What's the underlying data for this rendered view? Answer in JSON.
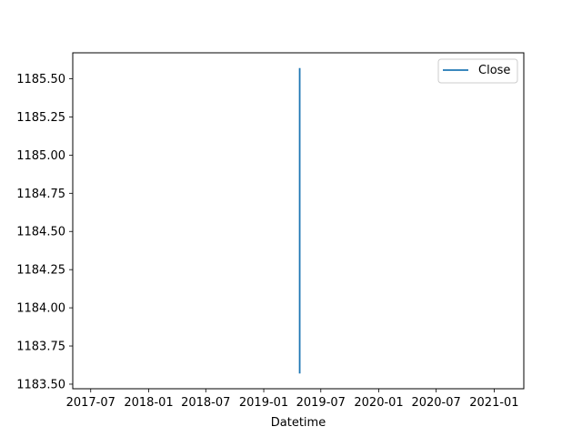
{
  "chart_data": {
    "type": "line",
    "title": "",
    "xlabel": "Datetime",
    "ylabel": "",
    "x_type": "date",
    "x_tick_labels": [
      "2017-07",
      "2018-01",
      "2018-07",
      "2019-01",
      "2019-07",
      "2020-01",
      "2020-07",
      "2021-01"
    ],
    "y_tick_labels": [
      "1183.50",
      "1183.75",
      "1184.00",
      "1184.25",
      "1184.50",
      "1184.75",
      "1185.00",
      "1185.25",
      "1185.50"
    ],
    "xlim": [
      "2017-05-05",
      "2021-04-05"
    ],
    "ylim": [
      1183.47,
      1185.67
    ],
    "grid": false,
    "legend": {
      "position": "top-right",
      "entries": [
        "Close"
      ]
    },
    "series": [
      {
        "name": "Close",
        "color": "#1f77b4",
        "points": [
          {
            "x": "2019-04-25",
            "y": 1183.57
          },
          {
            "x": "2019-04-25",
            "y": 1185.57
          }
        ]
      }
    ]
  }
}
